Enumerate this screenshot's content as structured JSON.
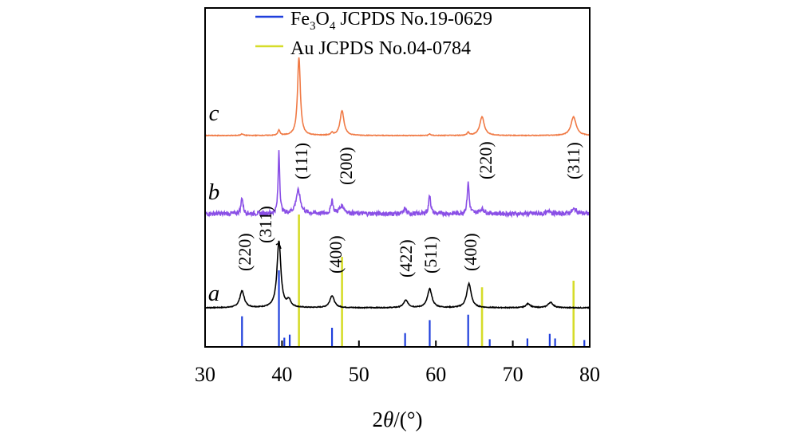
{
  "chart_data": {
    "type": "line",
    "title": "",
    "xlabel_prefix": "2",
    "xlabel_theta": "θ",
    "xlabel_unit": "/(°)",
    "ylabel": "",
    "xlim": [
      30,
      80
    ],
    "xticks": [
      30,
      40,
      50,
      60,
      70,
      80
    ],
    "legend": {
      "placement": "top",
      "entries": [
        {
          "id": "fe3o4",
          "base": "Fe",
          "sub1": "3",
          "mid": "O",
          "sub2": "4",
          "rest": " JCPDS No.19-0629",
          "color": "#1f3fdc"
        },
        {
          "id": "au",
          "text": "Au JCPDS No.04-0784",
          "color": "#d6dc2a"
        }
      ]
    },
    "reference_lines": {
      "Fe3O4": {
        "color": "#1f3fdc",
        "peaks": [
          {
            "x": 34.8,
            "rel": 0.4
          },
          {
            "x": 39.6,
            "rel": 1.0
          },
          {
            "x": 40.3,
            "rel": 0.12
          },
          {
            "x": 41.0,
            "rel": 0.16
          },
          {
            "x": 46.5,
            "rel": 0.25
          },
          {
            "x": 56.0,
            "rel": 0.18
          },
          {
            "x": 59.2,
            "rel": 0.35
          },
          {
            "x": 64.2,
            "rel": 0.42
          },
          {
            "x": 67.0,
            "rel": 0.1
          },
          {
            "x": 71.9,
            "rel": 0.11
          },
          {
            "x": 74.8,
            "rel": 0.17
          },
          {
            "x": 75.5,
            "rel": 0.11
          },
          {
            "x": 79.3,
            "rel": 0.09
          }
        ]
      },
      "Au": {
        "color": "#d6dc2a",
        "peaks": [
          {
            "x": 42.2,
            "rel": 1.0
          },
          {
            "x": 47.8,
            "rel": 0.68
          },
          {
            "x": 66.0,
            "rel": 0.45
          },
          {
            "x": 77.9,
            "rel": 0.5
          }
        ]
      }
    },
    "series": [
      {
        "name": "a",
        "label": "a",
        "color": "#000000",
        "peaks": [
          {
            "x": 34.8,
            "h": 0.25,
            "w": 0.35
          },
          {
            "x": 39.6,
            "h": 1.0,
            "w": 0.3
          },
          {
            "x": 40.9,
            "h": 0.1,
            "w": 0.3
          },
          {
            "x": 46.5,
            "h": 0.18,
            "w": 0.35
          },
          {
            "x": 56.1,
            "h": 0.11,
            "w": 0.35
          },
          {
            "x": 59.2,
            "h": 0.28,
            "w": 0.35
          },
          {
            "x": 64.3,
            "h": 0.36,
            "w": 0.35
          },
          {
            "x": 72.0,
            "h": 0.06,
            "w": 0.35
          },
          {
            "x": 74.9,
            "h": 0.08,
            "w": 0.4
          }
        ],
        "noise": 0.006,
        "annotations": [
          "(220)",
          "(311)",
          "(400)",
          "(422)",
          "(511)",
          "(400)"
        ]
      },
      {
        "name": "b",
        "label": "b",
        "color": "#8a4fe6",
        "peaks": [
          {
            "x": 34.8,
            "h": 0.26,
            "w": 0.15
          },
          {
            "x": 39.6,
            "h": 1.0,
            "w": 0.12
          },
          {
            "x": 42.1,
            "h": 0.36,
            "w": 0.35
          },
          {
            "x": 46.5,
            "h": 0.22,
            "w": 0.15
          },
          {
            "x": 47.8,
            "h": 0.12,
            "w": 0.4
          },
          {
            "x": 56.0,
            "h": 0.09,
            "w": 0.15
          },
          {
            "x": 59.2,
            "h": 0.3,
            "w": 0.15
          },
          {
            "x": 64.2,
            "h": 0.48,
            "w": 0.15
          },
          {
            "x": 66.0,
            "h": 0.07,
            "w": 0.4
          },
          {
            "x": 74.8,
            "h": 0.06,
            "w": 0.2
          },
          {
            "x": 78.0,
            "h": 0.07,
            "w": 0.4
          }
        ],
        "noise": 0.035,
        "annotations": [
          "(111)",
          "(200)",
          "(220)",
          "(311)"
        ]
      },
      {
        "name": "c",
        "label": "c",
        "color": "#f07a45",
        "peaks": [
          {
            "x": 34.8,
            "h": 0.02,
            "w": 0.2
          },
          {
            "x": 39.6,
            "h": 0.07,
            "w": 0.15
          },
          {
            "x": 42.2,
            "h": 1.0,
            "w": 0.22
          },
          {
            "x": 46.5,
            "h": 0.03,
            "w": 0.15
          },
          {
            "x": 47.8,
            "h": 0.32,
            "w": 0.3
          },
          {
            "x": 59.2,
            "h": 0.02,
            "w": 0.15
          },
          {
            "x": 64.2,
            "h": 0.04,
            "w": 0.15
          },
          {
            "x": 66.0,
            "h": 0.24,
            "w": 0.35
          },
          {
            "x": 77.9,
            "h": 0.24,
            "w": 0.4
          }
        ],
        "noise": 0.004,
        "annotations": []
      }
    ]
  }
}
